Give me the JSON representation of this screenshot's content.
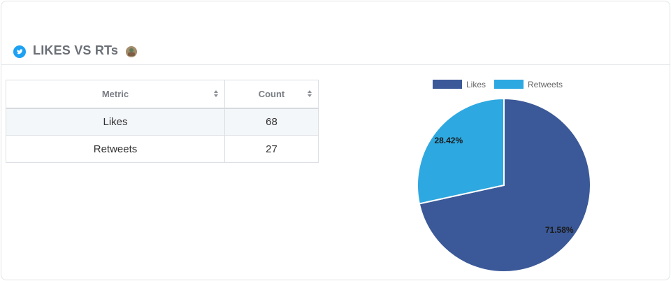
{
  "header": {
    "title": "LIKES VS RTs",
    "icon": "twitter-icon",
    "accent": "#1da1f2"
  },
  "table": {
    "columns": [
      "Metric",
      "Count"
    ],
    "rows": [
      {
        "metric": "Likes",
        "count": "68"
      },
      {
        "metric": "Retweets",
        "count": "27"
      }
    ]
  },
  "chart_data": {
    "type": "pie",
    "categories": [
      "Likes",
      "Retweets"
    ],
    "values": [
      68,
      27
    ],
    "labels": [
      "71.58%",
      "28.42%"
    ],
    "colors": [
      "#3b5998",
      "#2ea8e0"
    ],
    "legend": "top"
  }
}
